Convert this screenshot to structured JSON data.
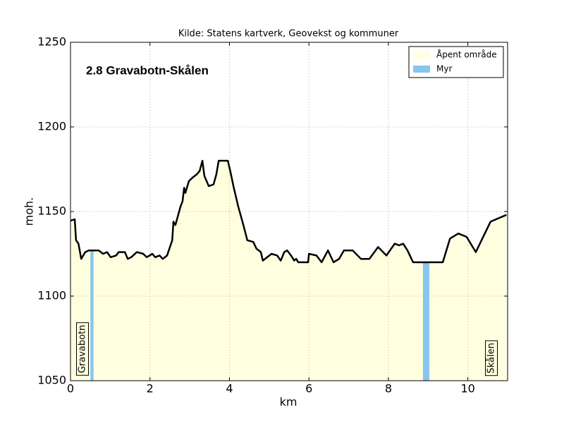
{
  "chart_data": {
    "type": "line",
    "title": "Kilde: Statens kartverk, Geovekst og kommuner",
    "subtitle": "2.8 Gravabotn-Skålen",
    "xlabel": "km",
    "ylabel": "moh.",
    "xlim": [
      0,
      11
    ],
    "ylim": [
      1050,
      1250
    ],
    "xticks": [
      0,
      2,
      4,
      6,
      8,
      10
    ],
    "yticks": [
      1050,
      1100,
      1150,
      1200,
      1250
    ],
    "grid": true,
    "legend_position": "upper right",
    "line_color": "#000000",
    "x": [
      0,
      0.106,
      0.14,
      0.2,
      0.27,
      0.32,
      0.37,
      0.46,
      0.62,
      0.71,
      0.82,
      0.92,
      1.01,
      1.15,
      1.21,
      1.37,
      1.44,
      1.53,
      1.67,
      1.83,
      1.92,
      2.06,
      2.13,
      2.24,
      2.32,
      2.43,
      2.56,
      2.59,
      2.64,
      2.77,
      2.82,
      2.86,
      2.89,
      2.98,
      3.07,
      3.18,
      3.25,
      3.32,
      3.37,
      3.48,
      3.6,
      3.67,
      3.73,
      3.96,
      4.03,
      4.1,
      4.22,
      4.35,
      4.45,
      4.6,
      4.68,
      4.79,
      4.84,
      5.06,
      5.2,
      5.29,
      5.38,
      5.45,
      5.55,
      5.63,
      5.68,
      5.73,
      5.98,
      6.0,
      6.19,
      6.32,
      6.48,
      6.62,
      6.76,
      6.88,
      7.1,
      7.31,
      7.52,
      7.74,
      7.95,
      8.16,
      8.27,
      8.37,
      8.48,
      8.62,
      9.37,
      9.55,
      9.76,
      9.97,
      10.2,
      10.57,
      10.97
    ],
    "values": [
      1144.6,
      1145.4,
      1133,
      1131,
      1122,
      1124,
      1126,
      1127,
      1127,
      1127,
      1125,
      1126,
      1123,
      1124,
      1126,
      1126,
      1122,
      1123,
      1126,
      1125,
      1123,
      1125,
      1123,
      1124,
      1122,
      1124,
      1133,
      1144,
      1142,
      1153,
      1156,
      1164,
      1161,
      1168,
      1170,
      1172,
      1174,
      1180,
      1171,
      1165,
      1166,
      1172,
      1180,
      1180,
      1173,
      1165,
      1153,
      1142,
      1133,
      1132,
      1128,
      1126,
      1121,
      1125,
      1124,
      1121,
      1126,
      1127,
      1124,
      1121,
      1122,
      1120,
      1120,
      1125,
      1124,
      1120,
      1127,
      1120,
      1122,
      1127,
      1127,
      1122,
      1122,
      1129,
      1124,
      1131,
      1130,
      1131,
      1127,
      1120,
      1120,
      1134,
      1137,
      1135,
      1126,
      1144,
      1148
    ],
    "legend": [
      {
        "name": "Åpent område",
        "color": "#ffffe0"
      },
      {
        "name": "Myr",
        "color": "#87c6ee"
      }
    ],
    "myr_spans": [
      [
        0.5,
        0.58
      ],
      [
        8.87,
        9.03
      ]
    ],
    "annotations": [
      "Gravabotn",
      "Skålen"
    ]
  }
}
